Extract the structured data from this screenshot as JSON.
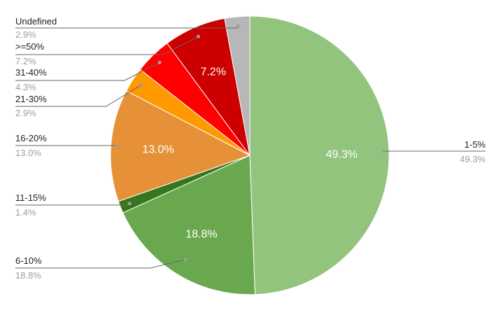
{
  "chart_data": {
    "type": "pie",
    "start_angle_deg": 0,
    "direction": "clockwise",
    "legend": "callout labels",
    "slices": [
      {
        "label": "1-5%",
        "value": 49.3,
        "display": "49.3%",
        "color": "#93c47d",
        "inside_label": "49.3%"
      },
      {
        "label": "6-10%",
        "value": 18.8,
        "display": "18.8%",
        "color": "#6aa84f",
        "inside_label": "18.8%"
      },
      {
        "label": "11-15%",
        "value": 1.4,
        "display": "1.4%",
        "color": "#38761d",
        "inside_label": ""
      },
      {
        "label": "16-20%",
        "value": 13.0,
        "display": "13.0%",
        "color": "#e69138",
        "inside_label": "13.0%"
      },
      {
        "label": "21-30%",
        "value": 2.9,
        "display": "2.9%",
        "color": "#ff9900",
        "inside_label": ""
      },
      {
        "label": "31-40%",
        "value": 4.3,
        "display": "4.3%",
        "color": "#ff0000",
        "inside_label": ""
      },
      {
        "label": ">=50%",
        "value": 7.2,
        "display": "7.2%",
        "color": "#cc0000",
        "inside_label": "7.2%"
      },
      {
        "label": "Undefined",
        "value": 2.9,
        "display": "2.9%",
        "color": "#b7b7b7",
        "inside_label": ""
      }
    ]
  }
}
